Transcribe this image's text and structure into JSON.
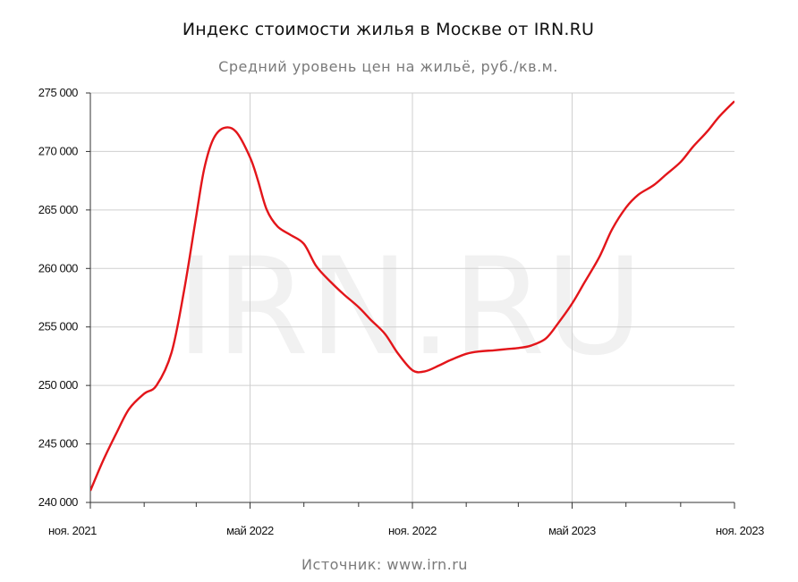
{
  "chart_data": {
    "type": "line",
    "title": "Индекс стоимости жилья в Москве от IRN.RU",
    "subtitle": "Средний уровень цен на жильё, руб./кв.м.",
    "source": "Источник: www.irn.ru",
    "watermark": "IRN.RU",
    "xlabel": "",
    "ylabel": "",
    "x_ticks": [
      "ноя. 2021",
      "май 2022",
      "ноя. 2022",
      "май 2023",
      "ноя. 2023"
    ],
    "y_ticks": [
      "240 000",
      "245 000",
      "250 000",
      "255 000",
      "260 000",
      "265 000",
      "270 000",
      "275 000"
    ],
    "y_tick_values": [
      240000,
      245000,
      250000,
      255000,
      260000,
      265000,
      270000,
      275000
    ],
    "ylim": [
      240000,
      275000
    ],
    "xlim": [
      "2021-11-01",
      "2023-11-01"
    ],
    "grid": true,
    "line_color": "#e3151a",
    "series": [
      {
        "x": [
          "2021-11-01",
          "2021-11-15",
          "2021-12-01",
          "2021-12-15",
          "2022-01-01",
          "2022-01-15",
          "2022-02-01",
          "2022-02-15",
          "2022-03-01",
          "2022-03-10",
          "2022-03-20",
          "2022-04-01",
          "2022-04-15",
          "2022-05-01",
          "2022-05-10",
          "2022-05-20",
          "2022-06-01",
          "2022-06-15",
          "2022-07-01",
          "2022-07-15",
          "2022-08-01",
          "2022-08-15",
          "2022-09-01",
          "2022-09-15",
          "2022-10-01",
          "2022-10-15",
          "2022-11-01",
          "2022-11-15",
          "2022-12-01",
          "2022-12-15",
          "2023-01-01",
          "2023-01-15",
          "2023-02-01",
          "2023-02-15",
          "2023-03-01",
          "2023-03-15",
          "2023-04-01",
          "2023-04-15",
          "2023-05-01",
          "2023-05-15",
          "2023-06-01",
          "2023-06-15",
          "2023-07-01",
          "2023-07-15",
          "2023-08-01",
          "2023-08-15",
          "2023-09-01",
          "2023-09-15",
          "2023-10-01",
          "2023-10-15",
          "2023-11-01"
        ],
        "values": [
          241000,
          243500,
          246000,
          248000,
          249300,
          250000,
          252800,
          258000,
          264500,
          268500,
          271000,
          272000,
          271700,
          269500,
          267500,
          265000,
          263600,
          262900,
          262100,
          260200,
          258800,
          257800,
          256700,
          255600,
          254400,
          252800,
          251300,
          251200,
          251700,
          252200,
          252700,
          252900,
          253000,
          253100,
          253200,
          253400,
          254000,
          255300,
          257000,
          258800,
          261000,
          263300,
          265200,
          266300,
          267100,
          268000,
          269100,
          270400,
          271700,
          273000,
          274300
        ]
      }
    ]
  }
}
